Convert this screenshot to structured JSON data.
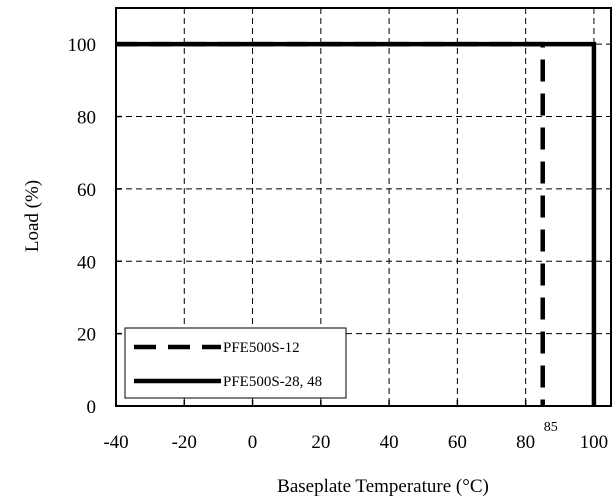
{
  "chart_data": {
    "type": "line",
    "title": "",
    "xlabel": "Baseplate Temperature (°C)",
    "ylabel": "Load  (%)",
    "xlim": [
      -40,
      105
    ],
    "ylim": [
      0,
      110
    ],
    "x_ticks": [
      -40,
      -20,
      0,
      20,
      40,
      60,
      80,
      100
    ],
    "y_ticks": [
      0,
      20,
      40,
      60,
      80,
      100
    ],
    "x_tick_labels": [
      "-40",
      "-20",
      "0",
      "20",
      "40",
      "60",
      "80",
      "100"
    ],
    "y_tick_labels": [
      "0",
      "20",
      "40",
      "60",
      "80",
      "100"
    ],
    "grid": true,
    "legend_position": "bottom-left",
    "series": [
      {
        "name": "PFE500S-12",
        "style": "dashed",
        "color": "#000000",
        "x": [
          -40,
          85,
          85
        ],
        "y": [
          100,
          100,
          0
        ]
      },
      {
        "name": "PFE500S-28, 48",
        "style": "solid",
        "color": "#000000",
        "x": [
          -40,
          100,
          100
        ],
        "y": [
          100,
          100,
          0
        ]
      }
    ],
    "annotations": [
      {
        "text": "85",
        "x": 85
      }
    ]
  }
}
